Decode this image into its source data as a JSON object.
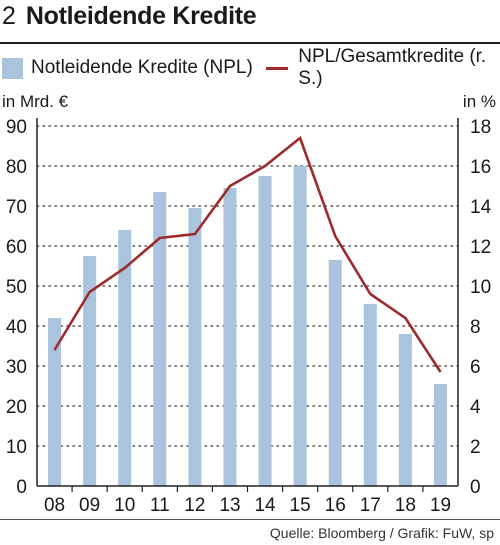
{
  "header": {
    "number": "2",
    "title": "Notleidende Kredite"
  },
  "legend": {
    "bars_label": "Notleidende Kredite (NPL)",
    "line_label": "NPL/Gesamtkredite (r. S.)"
  },
  "units": {
    "left": "in Mrd. €",
    "right": "in %"
  },
  "source": "Quelle: Bloomberg / Grafik: FuW, sp",
  "colors": {
    "bar": "#a9c4dc",
    "line": "#9e2b2b",
    "axis": "#222222",
    "grid": "#555555"
  },
  "chart_data": {
    "type": "bar",
    "categories": [
      "08",
      "09",
      "10",
      "11",
      "12",
      "13",
      "14",
      "15",
      "16",
      "17",
      "18",
      "19"
    ],
    "series": [
      {
        "name": "Notleidende Kredite (NPL)",
        "axis": "left",
        "type": "bar",
        "values": [
          42,
          57.5,
          64,
          73.5,
          69.5,
          74.5,
          77.5,
          80,
          56.5,
          45.5,
          38,
          25.5
        ]
      },
      {
        "name": "NPL/Gesamtkredite (r. S.)",
        "axis": "right",
        "type": "line",
        "values": [
          6.8,
          9.7,
          10.9,
          12.4,
          12.6,
          15.0,
          16.0,
          17.4,
          12.5,
          9.6,
          8.4,
          5.7
        ]
      }
    ],
    "y_left": {
      "min": 0,
      "max": 90,
      "ticks": [
        0,
        10,
        20,
        30,
        40,
        50,
        60,
        70,
        80,
        90
      ]
    },
    "y_right": {
      "min": 0,
      "max": 18,
      "ticks": [
        0,
        2,
        4,
        6,
        8,
        10,
        12,
        14,
        16,
        18
      ]
    },
    "grid": "dotted-horizontal",
    "legend_position": "top"
  }
}
